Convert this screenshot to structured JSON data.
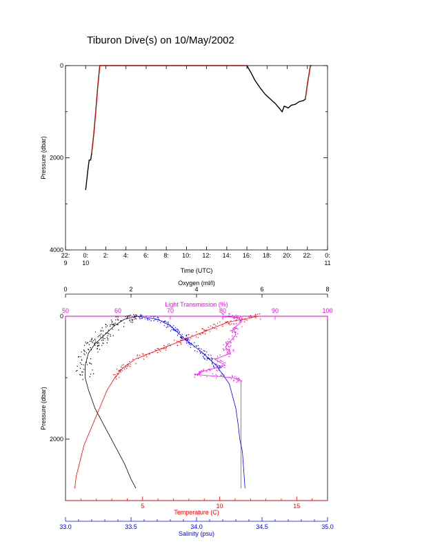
{
  "title": "Tiburon Dive(s) on 10/May/2002",
  "chart_data": [
    {
      "type": "line",
      "title": "Tiburon Dive(s) on 10/May/2002",
      "xlabel": "Time (UTC)",
      "ylabel": "Pressure (dbar)",
      "xlim": [
        -2,
        24
      ],
      "ylim": [
        4000,
        0
      ],
      "y_ticks": [
        0,
        2000,
        4000
      ],
      "x_ticks": [
        {
          "t": -2,
          "label": "22:",
          "sub": "9"
        },
        {
          "t": 0,
          "label": "0:",
          "sub": "10"
        },
        {
          "t": 2,
          "label": "2:",
          "sub": ""
        },
        {
          "t": 4,
          "label": "4:",
          "sub": ""
        },
        {
          "t": 6,
          "label": "6:",
          "sub": ""
        },
        {
          "t": 8,
          "label": "8:",
          "sub": ""
        },
        {
          "t": 10,
          "label": "10:",
          "sub": ""
        },
        {
          "t": 12,
          "label": "12:",
          "sub": ""
        },
        {
          "t": 14,
          "label": "14:",
          "sub": ""
        },
        {
          "t": 16,
          "label": "16:",
          "sub": ""
        },
        {
          "t": 18,
          "label": "18:",
          "sub": ""
        },
        {
          "t": 20,
          "label": "20:",
          "sub": ""
        },
        {
          "t": 22,
          "label": "22:",
          "sub": ""
        },
        {
          "t": 24,
          "label": "0:",
          "sub": "11"
        }
      ],
      "series": [
        {
          "color": "#000000",
          "points": [
            [
              0.0,
              2700
            ],
            [
              0.05,
              2600
            ],
            [
              0.2,
              2300
            ],
            [
              0.35,
              2050
            ],
            [
              0.5,
              2050
            ],
            [
              0.6,
              1900
            ],
            [
              0.8,
              1500
            ],
            [
              1.0,
              1000
            ],
            [
              1.2,
              450
            ],
            [
              1.4,
              0
            ],
            [
              16.0,
              0
            ],
            [
              16.4,
              150
            ],
            [
              16.8,
              320
            ],
            [
              17.3,
              480
            ],
            [
              17.8,
              620
            ],
            [
              18.3,
              720
            ],
            [
              18.8,
              820
            ],
            [
              19.2,
              920
            ],
            [
              19.5,
              1000
            ],
            [
              19.7,
              880
            ],
            [
              20.1,
              920
            ],
            [
              20.4,
              860
            ],
            [
              20.8,
              840
            ],
            [
              21.2,
              780
            ],
            [
              21.6,
              760
            ],
            [
              21.8,
              730
            ],
            [
              22.0,
              400
            ],
            [
              22.3,
              0
            ],
            [
              22.4,
              0
            ]
          ]
        },
        {
          "color": "#ff0000",
          "points": [
            [
              0.6,
              1900
            ],
            [
              0.8,
              1500
            ],
            [
              1.0,
              1000
            ],
            [
              1.2,
              450
            ],
            [
              1.4,
              0
            ],
            [
              16.0,
              0
            ]
          ]
        },
        {
          "color": "#ff0000",
          "points": [
            [
              21.8,
              730
            ],
            [
              22.0,
              400
            ],
            [
              22.3,
              0
            ]
          ]
        }
      ]
    },
    {
      "type": "scatter",
      "ylabel": "Pressure (dbar)",
      "ylim": [
        3000,
        0
      ],
      "y_ticks": [
        0,
        2000
      ],
      "axes": {
        "oxygen": {
          "label": "Oxygen (ml/l)",
          "range": [
            0,
            8
          ],
          "ticks": [
            0,
            2,
            4,
            6,
            8
          ],
          "color": "#000000"
        },
        "light_transmission": {
          "label": "Light Transmission (%)",
          "range": [
            50,
            100
          ],
          "ticks": [
            50,
            60,
            70,
            80,
            90,
            100
          ],
          "color": "#ff00ff"
        },
        "temperature": {
          "label": "Temperature (C)",
          "range": [
            0,
            17
          ],
          "ticks": [
            5,
            10,
            15
          ],
          "color": "#ff0000"
        },
        "salinity": {
          "label": "Salinity (psu)",
          "range": [
            33.0,
            35.0
          ],
          "ticks": [
            "33.0",
            "33.5",
            "34.0",
            "34.5",
            "35.0"
          ],
          "color": "#0000ff"
        }
      },
      "series": [
        {
          "name": "Oxygen (ml/l)",
          "color": "#000000",
          "axis": "oxygen",
          "points": [
            [
              2.2,
              0
            ],
            [
              1.8,
              50
            ],
            [
              1.5,
              150
            ],
            [
              1.2,
              300
            ],
            [
              0.9,
              450
            ],
            [
              0.7,
              600
            ],
            [
              0.6,
              800
            ],
            [
              0.6,
              1000
            ],
            [
              0.7,
              1200
            ],
            [
              0.9,
              1500
            ],
            [
              1.2,
              1800
            ],
            [
              1.5,
              2100
            ],
            [
              1.8,
              2400
            ],
            [
              2.0,
              2650
            ],
            [
              2.15,
              2800
            ]
          ]
        },
        {
          "name": "Light Transmission (%)",
          "color": "#ff00ff",
          "axis": "light_transmission",
          "points": [
            [
              80,
              0
            ],
            [
              83,
              20
            ],
            [
              83.5,
              100
            ],
            [
              82,
              200
            ],
            [
              82.5,
              300
            ],
            [
              81.5,
              400
            ],
            [
              80.5,
              500
            ],
            [
              81.5,
              600
            ],
            [
              78.5,
              700
            ],
            [
              80.5,
              800
            ],
            [
              76,
              900
            ],
            [
              75,
              950
            ],
            [
              82,
              1000
            ],
            [
              83.5,
              1050
            ],
            [
              83.5,
              1500
            ],
            [
              83.5,
              2000
            ],
            [
              83.5,
              2500
            ],
            [
              83.5,
              2800
            ]
          ]
        },
        {
          "name": "Temperature (C)",
          "color": "#ff0000",
          "axis": "temperature",
          "points": [
            [
              12.5,
              0
            ],
            [
              11.5,
              50
            ],
            [
              10.5,
              100
            ],
            [
              9.5,
              200
            ],
            [
              8.5,
              300
            ],
            [
              7.5,
              400
            ],
            [
              6.5,
              500
            ],
            [
              5.5,
              600
            ],
            [
              4.5,
              700
            ],
            [
              3.7,
              850
            ],
            [
              3.2,
              1000
            ],
            [
              2.7,
              1200
            ],
            [
              2.2,
              1500
            ],
            [
              1.7,
              1800
            ],
            [
              1.2,
              2100
            ],
            [
              0.9,
              2400
            ],
            [
              0.7,
              2600
            ],
            [
              0.6,
              2800
            ]
          ]
        },
        {
          "name": "Salinity (psu)",
          "color": "#0000ff",
          "axis": "salinity",
          "points": [
            [
              33.55,
              0
            ],
            [
              33.7,
              50
            ],
            [
              33.8,
              150
            ],
            [
              33.85,
              250
            ],
            [
              33.9,
              350
            ],
            [
              33.96,
              450
            ],
            [
              34.05,
              600
            ],
            [
              34.1,
              700
            ],
            [
              34.15,
              800
            ],
            [
              34.2,
              950
            ],
            [
              34.25,
              1100
            ],
            [
              34.3,
              1500
            ],
            [
              34.32,
              1800
            ],
            [
              34.33,
              2000
            ],
            [
              34.35,
              2200
            ],
            [
              34.36,
              2500
            ],
            [
              34.37,
              2800
            ]
          ]
        }
      ]
    }
  ]
}
